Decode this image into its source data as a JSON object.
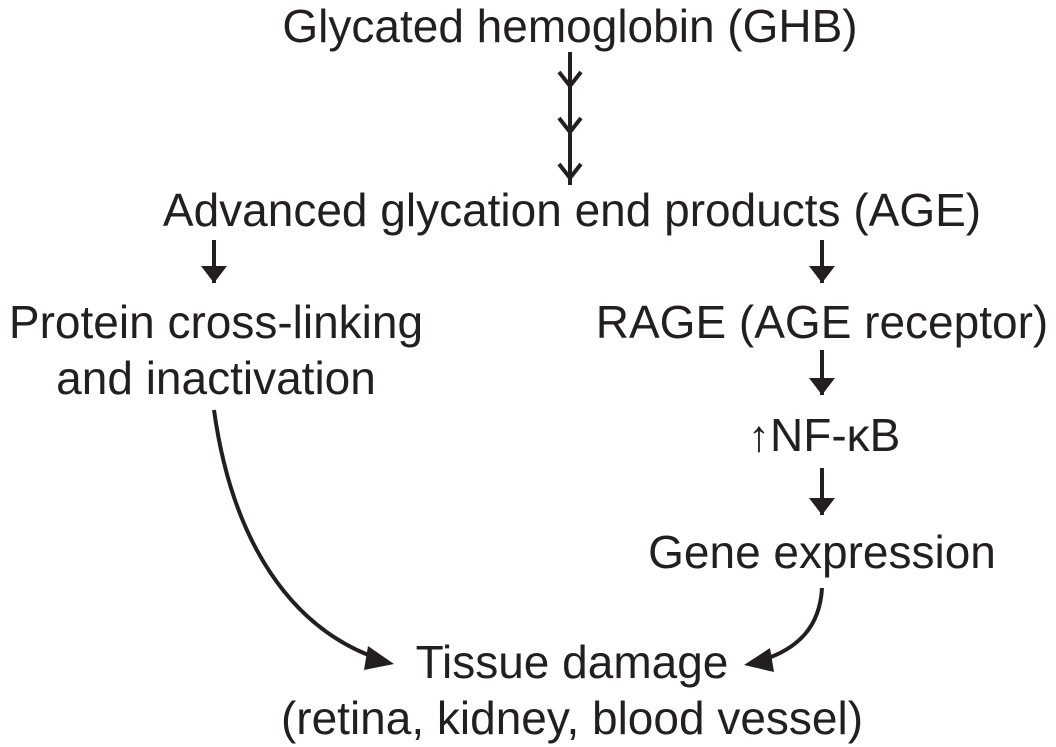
{
  "nodes": {
    "ghb": "Glycated hemoglobin (GHB)",
    "age": "Advanced glycation end products (AGE)",
    "crosslink_line1": "Protein cross-linking",
    "crosslink_line2": "and inactivation",
    "rage": "RAGE (AGE receptor)",
    "nfkb_up": "↑",
    "nfkb": "NF-κB",
    "gene": "Gene expression",
    "damage_line1": "Tissue damage",
    "damage_line2": "(retina, kidney, blood vessel)"
  },
  "colors": {
    "ink": "#231f20",
    "background": "#ffffff"
  }
}
